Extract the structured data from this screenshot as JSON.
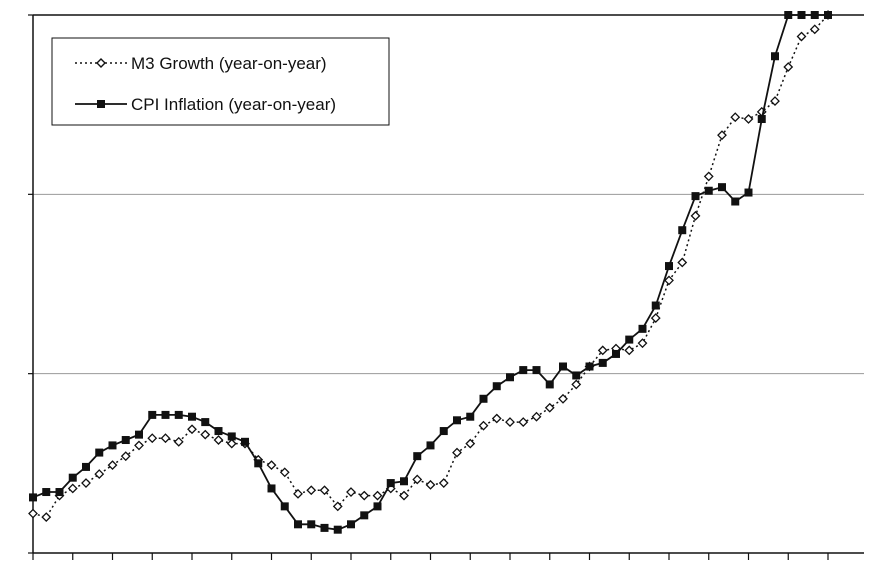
{
  "chart_data": {
    "type": "line",
    "title": "",
    "xlabel": "",
    "ylabel": "",
    "ylim": [
      0,
      3
    ],
    "grid": true,
    "legend": {
      "placement": "top-left"
    },
    "colors": {
      "axis": "#111111",
      "grid": "#9a9a9a",
      "series": "#111111"
    },
    "x": [
      0,
      1,
      2,
      3,
      4,
      5,
      6,
      7,
      8,
      9,
      10,
      11,
      12,
      13,
      14,
      15,
      16,
      17,
      18,
      19,
      20,
      21,
      22,
      23,
      24,
      25,
      26,
      27,
      28,
      29,
      30,
      31,
      32,
      33,
      34,
      35,
      36,
      37,
      38,
      39,
      40,
      41,
      42,
      43,
      44,
      45,
      46,
      47,
      48,
      49,
      50,
      51,
      52,
      53,
      54,
      55,
      56,
      57,
      58,
      59,
      60
    ],
    "series": [
      {
        "name": "M3 Growth (year-on-year)",
        "style": "dotted",
        "marker": "diamond-open",
        "values": [
          0.22,
          0.2,
          0.32,
          0.36,
          0.39,
          0.44,
          0.49,
          0.54,
          0.6,
          0.64,
          0.64,
          0.62,
          0.69,
          0.66,
          0.63,
          0.61,
          0.61,
          0.52,
          0.49,
          0.45,
          0.33,
          0.35,
          0.35,
          0.26,
          0.34,
          0.32,
          0.32,
          0.36,
          0.32,
          0.41,
          0.38,
          0.39,
          0.56,
          0.61,
          0.71,
          0.75,
          0.73,
          0.73,
          0.76,
          0.81,
          0.86,
          0.94,
          1.04,
          1.13,
          1.14,
          1.13,
          1.17,
          1.31,
          1.52,
          1.62,
          1.88,
          2.1,
          2.33,
          2.43,
          2.42,
          2.46,
          2.52,
          2.71,
          2.88,
          2.92,
          3.01
        ]
      },
      {
        "name": "CPI Inflation (year-on-year)",
        "style": "solid",
        "marker": "square-filled",
        "values": [
          0.31,
          0.34,
          0.34,
          0.42,
          0.48,
          0.56,
          0.6,
          0.63,
          0.66,
          0.77,
          0.77,
          0.77,
          0.76,
          0.73,
          0.68,
          0.65,
          0.62,
          0.5,
          0.36,
          0.26,
          0.16,
          0.16,
          0.14,
          0.13,
          0.16,
          0.21,
          0.26,
          0.39,
          0.4,
          0.54,
          0.6,
          0.68,
          0.74,
          0.76,
          0.86,
          0.93,
          0.98,
          1.02,
          1.02,
          0.94,
          1.04,
          0.99,
          1.04,
          1.06,
          1.11,
          1.19,
          1.25,
          1.38,
          1.6,
          1.8,
          1.99,
          2.02,
          2.04,
          1.96,
          2.01,
          2.42,
          2.77,
          3.0,
          3.0,
          3.06,
          3.1
        ]
      }
    ]
  }
}
